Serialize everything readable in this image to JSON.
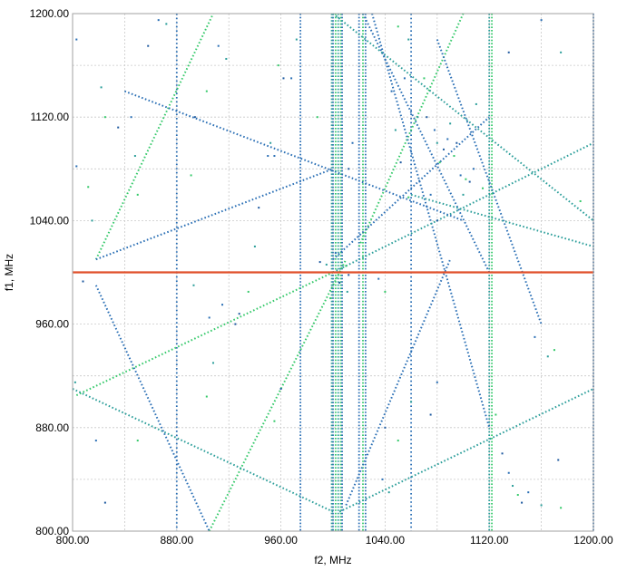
{
  "chart_data": {
    "type": "scatter",
    "title": "",
    "xlabel": "f2, MHz",
    "ylabel": "f1, MHz",
    "xlim": [
      800,
      1200
    ],
    "ylim": [
      800,
      1200
    ],
    "x_ticks": [
      "800.00",
      "880.00",
      "960.00",
      "1040.00",
      "1120.00",
      "1200.00"
    ],
    "y_ticks": [
      "800.00",
      "880.00",
      "960.00",
      "1040.00",
      "1120.00",
      "1200.00"
    ],
    "x_tick_values": [
      800,
      880,
      960,
      1040,
      1120,
      1200
    ],
    "y_tick_values": [
      800,
      880,
      960,
      1040,
      1120,
      1200
    ],
    "grid": "on",
    "marker_colors": [
      "#2a6fb5",
      "#2b9e9a",
      "#35c96a",
      "#1f5aa0"
    ],
    "reference_line": {
      "y": 1000,
      "color": "#e0502a"
    },
    "vertical_lines": [
      {
        "x": 880,
        "color": "#2a6fb5",
        "dash": 3
      },
      {
        "x": 975,
        "color": "#2a6fb5",
        "dash": 2
      },
      {
        "x": 1000,
        "color": "#2a6fb5",
        "dash": 2
      },
      {
        "x": 999,
        "color": "#2b9e9a",
        "dash": 2
      },
      {
        "x": 1002,
        "color": "#35c96a",
        "dash": 2
      },
      {
        "x": 1004,
        "color": "#2b9e9a",
        "dash": 2
      },
      {
        "x": 1006,
        "color": "#35c96a",
        "dash": 2
      },
      {
        "x": 1007,
        "color": "#2a6fb5",
        "dash": 2
      },
      {
        "x": 1020,
        "color": "#2a6fb5",
        "dash": 2
      },
      {
        "x": 1023,
        "color": "#35c96a",
        "dash": 2
      },
      {
        "x": 1025,
        "color": "#2a6fb5",
        "dash": 2
      },
      {
        "x": 1060,
        "color": "#2a6fb5",
        "dash": 3
      },
      {
        "x": 1120,
        "color": "#2b9e9a",
        "dash": 2
      },
      {
        "x": 1122,
        "color": "#35c96a",
        "dash": 2
      },
      {
        "x": 1200,
        "color": "#2a6fb5",
        "dash": 2
      }
    ],
    "diagonal_series": [
      {
        "x": [
          818,
          908
        ],
        "y": [
          1010,
          1200
        ],
        "color": "#35c96a"
      },
      {
        "x": [
          905,
          1010
        ],
        "y": [
          800,
          1010
        ],
        "color": "#35c96a"
      },
      {
        "x": [
          1020,
          1100
        ],
        "y": [
          1020,
          1200
        ],
        "color": "#35c96a"
      },
      {
        "x": [
          1010,
          1090
        ],
        "y": [
          820,
          1010
        ],
        "color": "#2a6fb5"
      },
      {
        "x": [
          1023,
          1120
        ],
        "y": [
          1200,
          1000
        ],
        "color": "#2a6fb5"
      },
      {
        "x": [
          1030,
          1120
        ],
        "y": [
          1200,
          880
        ],
        "color": "#2a6fb5"
      },
      {
        "x": [
          1080,
          1160
        ],
        "y": [
          1180,
          960
        ],
        "color": "#2a6fb5"
      },
      {
        "x": [
          818,
          1000
        ],
        "y": [
          1010,
          1080
        ],
        "color": "#2a6fb5"
      },
      {
        "x": [
          1000,
          1200
        ],
        "y": [
          1000,
          1100
        ],
        "color": "#2b9e9a"
      },
      {
        "x": [
          840,
          1100
        ],
        "y": [
          1140,
          1040
        ],
        "color": "#2a6fb5"
      },
      {
        "x": [
          1000,
          1200
        ],
        "y": [
          1200,
          1040
        ],
        "color": "#2b9e9a"
      },
      {
        "x": [
          1000,
          1120
        ],
        "y": [
          1010,
          1120
        ],
        "color": "#2a6fb5"
      },
      {
        "x": [
          803,
          1000
        ],
        "y": [
          905,
          1000
        ],
        "color": "#35c96a"
      },
      {
        "x": [
          800,
          1000
        ],
        "y": [
          910,
          815
        ],
        "color": "#2b9e9a"
      },
      {
        "x": [
          1005,
          1200
        ],
        "y": [
          815,
          910
        ],
        "color": "#2b9e9a"
      },
      {
        "x": [
          818,
          905
        ],
        "y": [
          990,
          800
        ],
        "color": "#2a6fb5"
      },
      {
        "x": [
          1060,
          1200
        ],
        "y": [
          1060,
          1020
        ],
        "color": "#2b9e9a"
      }
    ],
    "scatter_points": [
      {
        "x": 803,
        "y": 1180
      },
      {
        "x": 822,
        "y": 1143
      },
      {
        "x": 825,
        "y": 1120
      },
      {
        "x": 835,
        "y": 1112
      },
      {
        "x": 845,
        "y": 1120
      },
      {
        "x": 848,
        "y": 1090
      },
      {
        "x": 850,
        "y": 1060
      },
      {
        "x": 858,
        "y": 1175
      },
      {
        "x": 866,
        "y": 1195
      },
      {
        "x": 872,
        "y": 1192
      },
      {
        "x": 891,
        "y": 1075
      },
      {
        "x": 894,
        "y": 1120
      },
      {
        "x": 912,
        "y": 1175
      },
      {
        "x": 918,
        "y": 1165
      },
      {
        "x": 903,
        "y": 1140
      },
      {
        "x": 943,
        "y": 1050
      },
      {
        "x": 950,
        "y": 1090
      },
      {
        "x": 952,
        "y": 1100
      },
      {
        "x": 958,
        "y": 1160
      },
      {
        "x": 962,
        "y": 1150
      },
      {
        "x": 955,
        "y": 1090
      },
      {
        "x": 940,
        "y": 1020
      },
      {
        "x": 935,
        "y": 985
      },
      {
        "x": 925,
        "y": 960
      },
      {
        "x": 915,
        "y": 975
      },
      {
        "x": 908,
        "y": 930
      },
      {
        "x": 903,
        "y": 904
      },
      {
        "x": 928,
        "y": 968
      },
      {
        "x": 905,
        "y": 965
      },
      {
        "x": 893,
        "y": 990
      },
      {
        "x": 850,
        "y": 870
      },
      {
        "x": 825,
        "y": 822
      },
      {
        "x": 818,
        "y": 870
      },
      {
        "x": 815,
        "y": 1040
      },
      {
        "x": 812,
        "y": 1066
      },
      {
        "x": 808,
        "y": 993
      },
      {
        "x": 803,
        "y": 1082
      },
      {
        "x": 802,
        "y": 915
      },
      {
        "x": 955,
        "y": 885
      },
      {
        "x": 960,
        "y": 910
      },
      {
        "x": 968,
        "y": 1150
      },
      {
        "x": 972,
        "y": 1180
      },
      {
        "x": 988,
        "y": 1120
      },
      {
        "x": 990,
        "y": 1008
      },
      {
        "x": 992,
        "y": 1000
      },
      {
        "x": 995,
        "y": 1006
      },
      {
        "x": 1010,
        "y": 1005
      },
      {
        "x": 1012,
        "y": 998
      },
      {
        "x": 1035,
        "y": 995
      },
      {
        "x": 1038,
        "y": 1000
      },
      {
        "x": 1040,
        "y": 985
      },
      {
        "x": 1043,
        "y": 1000
      },
      {
        "x": 1045,
        "y": 1140
      },
      {
        "x": 1048,
        "y": 1110
      },
      {
        "x": 1050,
        "y": 1190
      },
      {
        "x": 1052,
        "y": 1085
      },
      {
        "x": 1055,
        "y": 1150
      },
      {
        "x": 1058,
        "y": 1180
      },
      {
        "x": 1070,
        "y": 1150
      },
      {
        "x": 1072,
        "y": 1120
      },
      {
        "x": 1078,
        "y": 1110
      },
      {
        "x": 1080,
        "y": 1100
      },
      {
        "x": 1082,
        "y": 1085
      },
      {
        "x": 1085,
        "y": 1095
      },
      {
        "x": 1088,
        "y": 1103
      },
      {
        "x": 1090,
        "y": 1115
      },
      {
        "x": 1093,
        "y": 1090
      },
      {
        "x": 1095,
        "y": 1100
      },
      {
        "x": 1098,
        "y": 1075
      },
      {
        "x": 1100,
        "y": 1060
      },
      {
        "x": 1102,
        "y": 1072
      },
      {
        "x": 1105,
        "y": 1070
      },
      {
        "x": 1108,
        "y": 1080
      },
      {
        "x": 1110,
        "y": 1130
      },
      {
        "x": 1115,
        "y": 1065
      },
      {
        "x": 1135,
        "y": 1170
      },
      {
        "x": 1160,
        "y": 1195
      },
      {
        "x": 1175,
        "y": 1170
      },
      {
        "x": 1190,
        "y": 1055
      },
      {
        "x": 1075,
        "y": 890
      },
      {
        "x": 1080,
        "y": 915
      },
      {
        "x": 1060,
        "y": 900
      },
      {
        "x": 1050,
        "y": 870
      },
      {
        "x": 1040,
        "y": 880
      },
      {
        "x": 1038,
        "y": 840
      },
      {
        "x": 1043,
        "y": 830
      },
      {
        "x": 1125,
        "y": 890
      },
      {
        "x": 1130,
        "y": 860
      },
      {
        "x": 1135,
        "y": 845
      },
      {
        "x": 1138,
        "y": 835
      },
      {
        "x": 1142,
        "y": 828
      },
      {
        "x": 1145,
        "y": 822
      },
      {
        "x": 1150,
        "y": 830
      },
      {
        "x": 1160,
        "y": 820
      },
      {
        "x": 1175,
        "y": 818
      },
      {
        "x": 1173,
        "y": 855
      },
      {
        "x": 1155,
        "y": 950
      },
      {
        "x": 1165,
        "y": 935
      },
      {
        "x": 1170,
        "y": 940
      },
      {
        "x": 1080,
        "y": 1040
      },
      {
        "x": 1075,
        "y": 1060
      },
      {
        "x": 1065,
        "y": 1120
      },
      {
        "x": 1058,
        "y": 1058
      },
      {
        "x": 1012,
        "y": 1080
      },
      {
        "x": 1015,
        "y": 1100
      },
      {
        "x": 1011,
        "y": 985
      },
      {
        "x": 998,
        "y": 980
      },
      {
        "x": 1005,
        "y": 992
      },
      {
        "x": 1002,
        "y": 1015
      }
    ]
  }
}
